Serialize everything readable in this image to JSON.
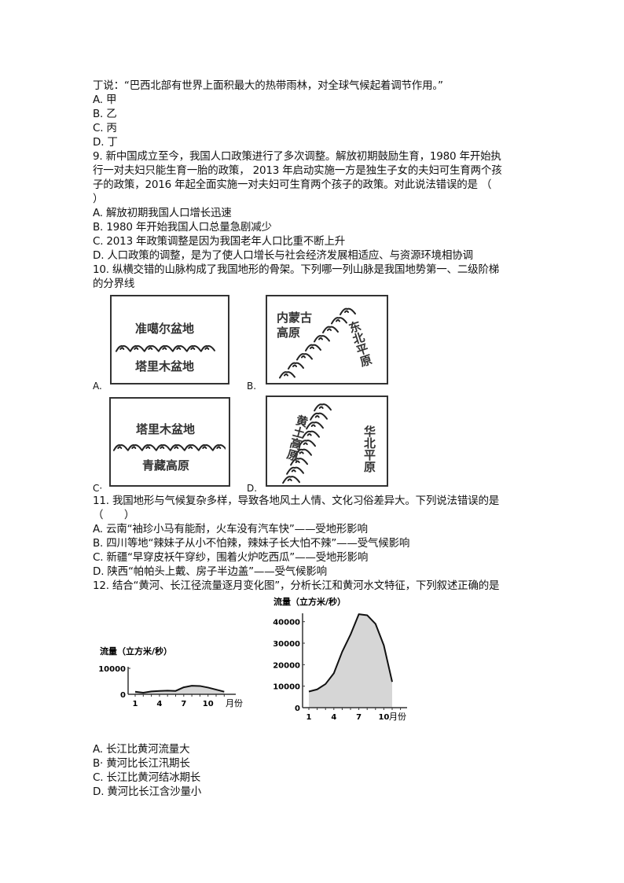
{
  "text_lines": [
    "丁说：“巴西北部有世界上面积最大的热带雨林，对全球气候起着调节作用。”",
    "A. 甲",
    "B. 乙",
    "C. 丙",
    "D. 丁",
    "9. 新中国成立至今，我国人口政策进行了多次调整。解放初期鼓励生育，1980 年开始执",
    "行一对夫妇只能生育一胎的政策， 2013 年启动实施一方是独生子女的夫妇可生育两个孩",
    "子的政策，2016 年起全面实施一对夫妇可生育两个孩子的政策。对此说法错误的是 （",
    "）",
    "A. 解放初期我国人口增长迅速",
    "B. 1980 年开始我国人口总量急剧减少",
    "C. 2013 年政策调整是因为我国老年人口比重不断上升",
    "D. 人口政策的调整，是为了使人口增长与社会经济发展相适应、与资源环境相协调",
    "10. 纵横交错的山脉构成了我国地形的骨架。下列哪一列山脉是我国地势第一、二级阶梯",
    "的分界线",
    "11. 我国地形与气候复杂多样，导致各地风土人情、文化习俗差异大。下列说法错误的是",
    "（　　）",
    "A. 云南“袖珍小马有能耐，火车没有汽车快”——受地形影响",
    "B. 四川等地“辣妹子从小不怕辣，辣妹子长大怕不辣”——受气候影响",
    "C. 新疆“早穿皮袄午穿纱，围着火炉吃西瓜”——受地形影响",
    "D. 陕西“帕帕头上戴、房子半边盖”——受气候影响",
    "12. 结合“黄河、长江径流量逐月变化图”，分析长江和黄河水文特征，下列叙述正确的是",
    "A. 长江比黄河流量大",
    "B· 黄河比长江汛期长",
    "C. 长江比黄河结冰期长",
    "D. 黄河比长江含沙量小"
  ],
  "figures": {
    "A": {
      "label": "A.",
      "top_text": "准噶尔盆地",
      "bottom_text": "塔里木盆地"
    },
    "B": {
      "label": "B.",
      "left_text": "内蒙古高原",
      "right_text": "东北平原"
    },
    "C": {
      "label": "C·",
      "top_text": "塔里木盆地",
      "bottom_text": "青藏高原"
    },
    "D": {
      "label": "D.",
      "left_text": "黄土高原",
      "right_text": "华北平原"
    }
  },
  "chart_data": [
    {
      "type": "area",
      "title": "流量（立方米/秒）",
      "xlabel": "月份",
      "x": [
        1,
        2,
        3,
        4,
        5,
        6,
        7,
        8,
        9,
        10,
        11,
        12
      ],
      "values": [
        1000,
        600,
        1100,
        1300,
        1400,
        1300,
        2700,
        3300,
        3200,
        2600,
        1800,
        1000
      ],
      "xticks": [
        "1",
        "4",
        "7",
        "10"
      ],
      "yticks": [
        "0",
        "10000"
      ],
      "ylim": [
        0,
        10000
      ],
      "fill": "#d6d6d6"
    },
    {
      "type": "area",
      "title": "流量（立方米/秒）",
      "xlabel": "月份",
      "x": [
        1,
        2,
        3,
        4,
        5,
        6,
        7,
        8,
        9,
        10,
        11,
        12
      ],
      "values": [
        7500,
        8500,
        11000,
        16000,
        26000,
        34000,
        43500,
        43000,
        39000,
        29000,
        12000,
        null
      ],
      "xticks": [
        "1",
        "4",
        "7",
        "10"
      ],
      "yticks": [
        "0",
        "10000",
        "20000",
        "30000",
        "40000"
      ],
      "ylim": [
        0,
        45000
      ],
      "fill": "#d6d6d6"
    }
  ]
}
